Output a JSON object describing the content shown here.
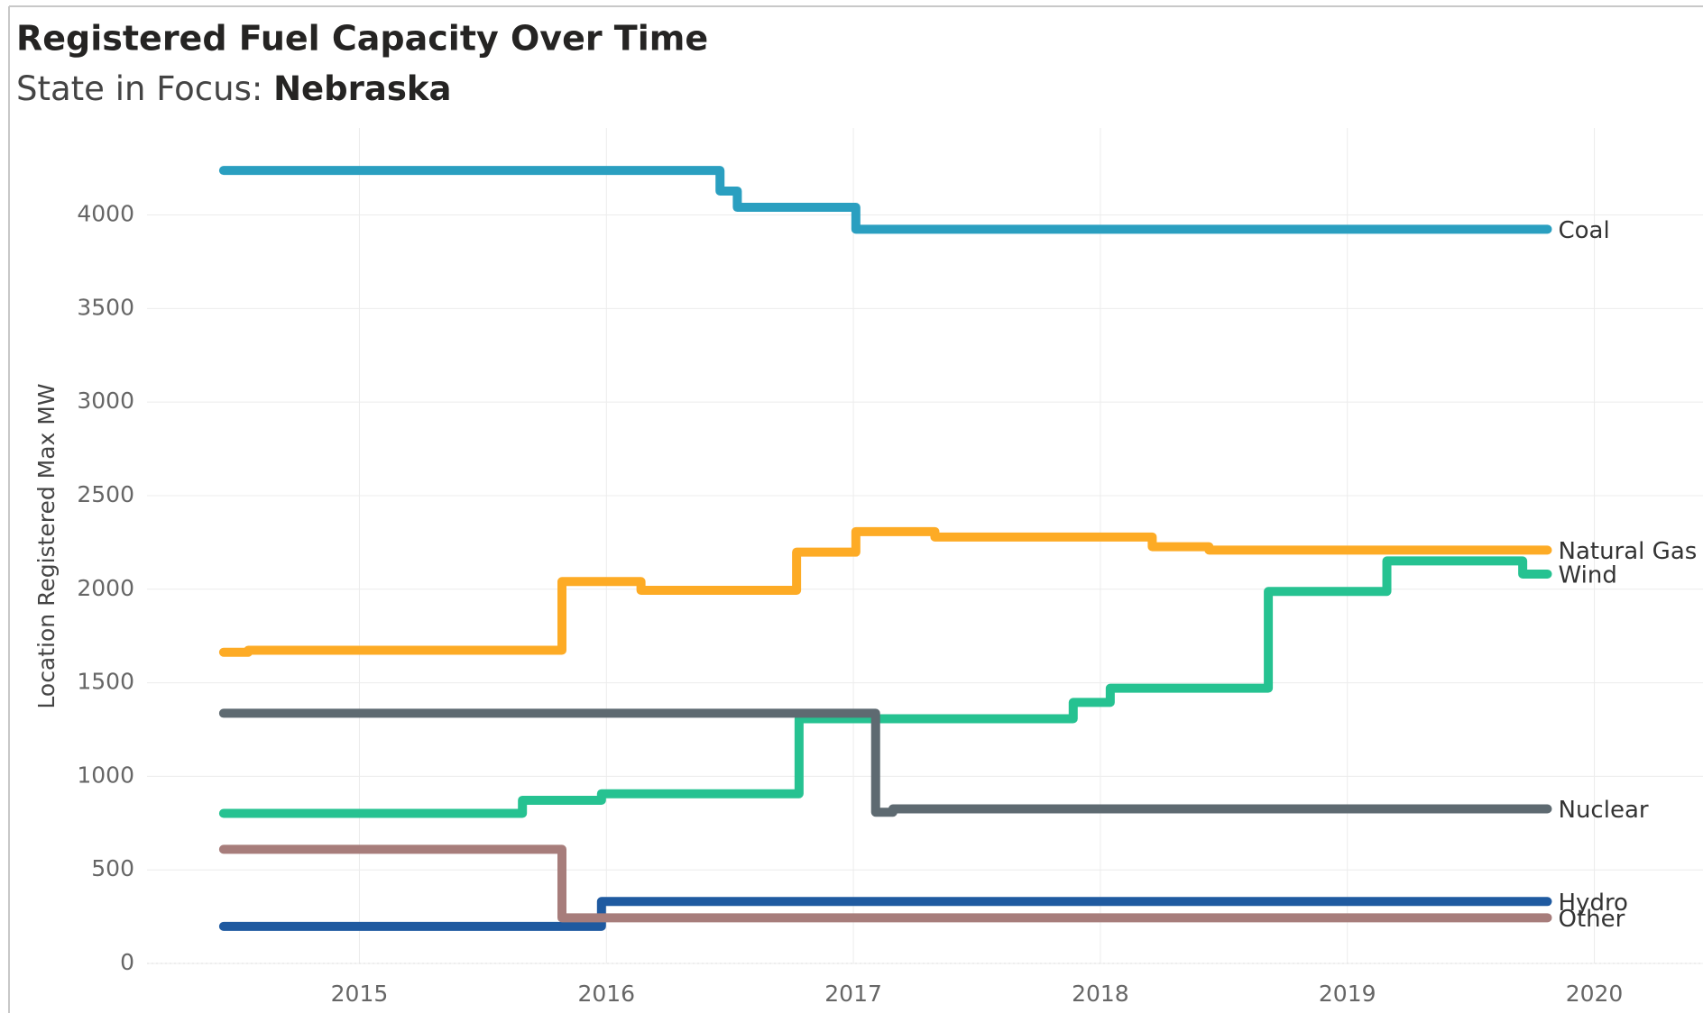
{
  "chart_data": {
    "type": "step-line",
    "title": "Registered Fuel Capacity Over Time",
    "subtitle_prefix": "State in Focus: ",
    "subtitle_state": "Nebraska",
    "y_label": "Location Registered Max MW",
    "xlim": [
      2014.14,
      2020.44
    ],
    "xticks": [
      2015,
      2016,
      2017,
      2018,
      2019,
      2020
    ],
    "ylim": [
      0,
      4465
    ],
    "yticks": [
      0,
      500,
      1000,
      1500,
      2000,
      2500,
      3000,
      3500,
      4000
    ],
    "grid": true,
    "series": [
      {
        "name": "Coal",
        "color": "#2a9fc0",
        "x": [
          2014.45,
          2016.46,
          2016.53,
          2017.01,
          2019.81
        ],
        "values": [
          4238,
          4128,
          4041,
          3924,
          3924
        ]
      },
      {
        "name": "Natural Gas",
        "color": "#fdab25",
        "x": [
          2014.45,
          2014.55,
          2015.82,
          2016.14,
          2016.77,
          2017.01,
          2017.33,
          2018.21,
          2018.44,
          2019.81
        ],
        "values": [
          1663,
          1674,
          2041,
          1994,
          2198,
          2308,
          2279,
          2227,
          2209,
          2209
        ]
      },
      {
        "name": "Wind",
        "color": "#26c291",
        "x": [
          2014.45,
          2015.66,
          2015.98,
          2016.78,
          2017.89,
          2018.04,
          2018.68,
          2019.16,
          2019.71,
          2019.81
        ],
        "values": [
          802,
          872,
          907,
          1308,
          1395,
          1471,
          1988,
          2151,
          2081,
          2081
        ]
      },
      {
        "name": "Nuclear",
        "color": "#5e6a71",
        "x": [
          2014.45,
          2017.09,
          2017.16,
          2019.81
        ],
        "values": [
          1337,
          808,
          826,
          826
        ]
      },
      {
        "name": "Hydro",
        "color": "#1f5aa0",
        "x": [
          2014.45,
          2015.98,
          2019.81
        ],
        "values": [
          198,
          331,
          331
        ]
      },
      {
        "name": "Other",
        "color": "#a77d7b",
        "x": [
          2014.45,
          2015.82,
          2019.81
        ],
        "values": [
          610,
          244,
          244
        ]
      }
    ]
  }
}
